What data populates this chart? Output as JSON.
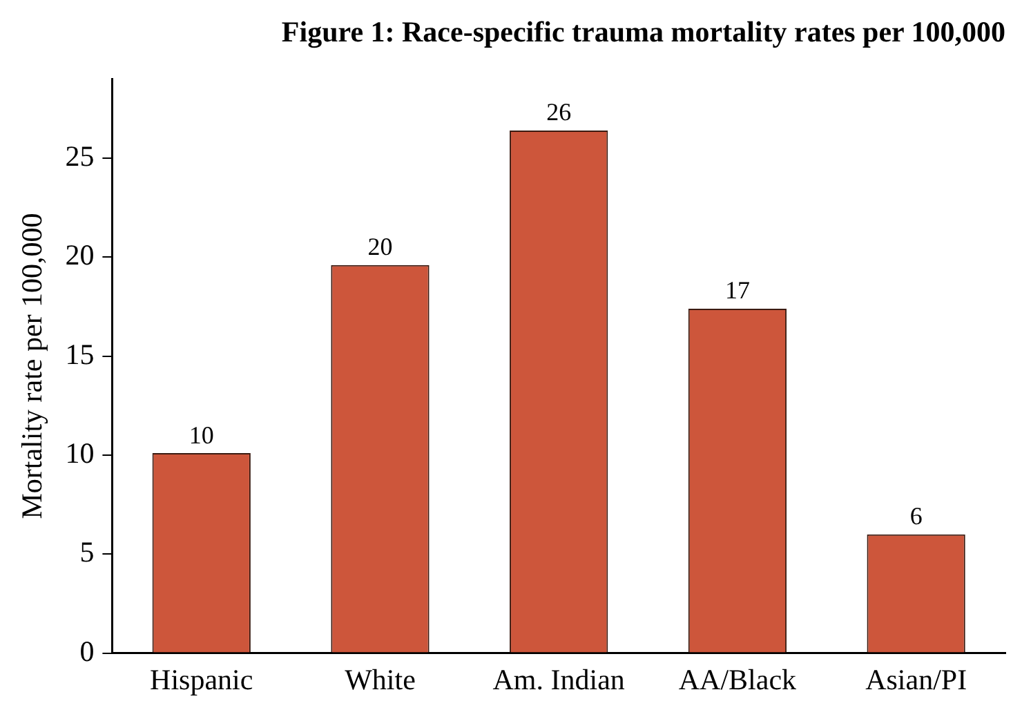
{
  "chart_data": {
    "type": "bar",
    "title": "Figure 1: Race-specific trauma mortality rates per 100,000",
    "ylabel": "Mortality rate per 100,000",
    "categories": [
      "Hispanic",
      "White",
      "Am. Indian",
      "AA/Black",
      "Asian/PI"
    ],
    "values": [
      10.1,
      19.6,
      26.4,
      17.4,
      6.0
    ],
    "value_labels": [
      "10",
      "20",
      "26",
      "17",
      "6"
    ],
    "color": "#cd563b",
    "ylim": [
      0,
      29
    ],
    "yticks": [
      0,
      5,
      10,
      15,
      20,
      25
    ],
    "grid": false,
    "legend": false
  }
}
